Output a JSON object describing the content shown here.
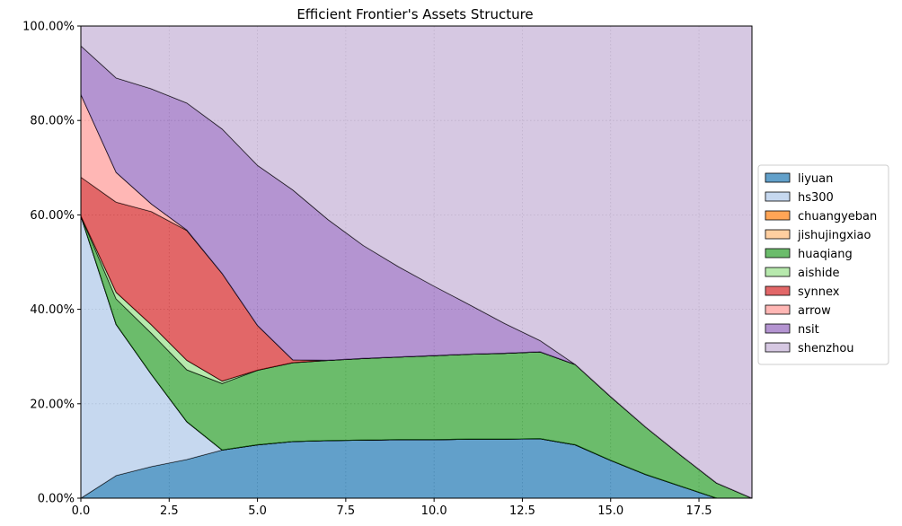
{
  "chart_data": {
    "type": "area",
    "stacked": true,
    "normalized": true,
    "title": "Efficient Frontier's Assets Structure",
    "xlabel": "",
    "ylabel": "",
    "xlim": [
      0,
      19
    ],
    "ylim": [
      0,
      1
    ],
    "xticks": [
      0.0,
      2.5,
      5.0,
      7.5,
      10.0,
      12.5,
      15.0,
      17.5
    ],
    "xtick_labels": [
      "0.0",
      "2.5",
      "5.0",
      "7.5",
      "10.0",
      "12.5",
      "15.0",
      "17.5"
    ],
    "yticks": [
      0,
      0.2,
      0.4,
      0.6,
      0.8,
      1.0
    ],
    "ytick_labels": [
      "0.00%",
      "20.00%",
      "40.00%",
      "60.00%",
      "80.00%",
      "100.00%"
    ],
    "grid": true,
    "legend_position": "right",
    "x": [
      0,
      1,
      2,
      3,
      4,
      5,
      6,
      7,
      8,
      9,
      10,
      11,
      12,
      13,
      14,
      15,
      16,
      17,
      18,
      19
    ],
    "series": [
      {
        "name": "liyuan",
        "color": "#1f77b4",
        "values": [
          0,
          0.048,
          0.067,
          0.082,
          0.102,
          0.113,
          0.12,
          0.122,
          0.123,
          0.124,
          0.124,
          0.125,
          0.125,
          0.126,
          0.113,
          0.08,
          0.05,
          0.025,
          0,
          0
        ]
      },
      {
        "name": "hs300",
        "color": "#aec7e8",
        "values": [
          0.598,
          0.32,
          0.195,
          0.08,
          0,
          0,
          0,
          0,
          0,
          0,
          0,
          0,
          0,
          0,
          0,
          0,
          0,
          0,
          0,
          0
        ]
      },
      {
        "name": "chuangyeban",
        "color": "#ff7f0e",
        "values": [
          0,
          0,
          0,
          0,
          0,
          0,
          0,
          0,
          0,
          0,
          0,
          0,
          0,
          0,
          0,
          0,
          0,
          0,
          0,
          0
        ]
      },
      {
        "name": "jishujingxiao",
        "color": "#ffbb78",
        "values": [
          0,
          0,
          0,
          0,
          0,
          0,
          0,
          0,
          0,
          0,
          0,
          0,
          0,
          0,
          0,
          0,
          0,
          0,
          0,
          0
        ]
      },
      {
        "name": "huaqiang",
        "color": "#2ca02c",
        "values": [
          0,
          0.054,
          0.087,
          0.11,
          0.141,
          0.158,
          0.167,
          0.17,
          0.173,
          0.175,
          0.178,
          0.18,
          0.182,
          0.184,
          0.17,
          0.135,
          0.1,
          0.065,
          0.032,
          0
        ]
      },
      {
        "name": "aishide",
        "color": "#98df8a",
        "values": [
          0,
          0.014,
          0.018,
          0.02,
          0.005,
          0,
          0,
          0,
          0,
          0,
          0,
          0,
          0,
          0,
          0,
          0,
          0,
          0,
          0,
          0
        ]
      },
      {
        "name": "synnex",
        "color": "#d62728",
        "values": [
          0.082,
          0.191,
          0.24,
          0.275,
          0.228,
          0.095,
          0.006,
          0,
          0,
          0,
          0,
          0,
          0,
          0,
          0,
          0,
          0,
          0,
          0,
          0
        ]
      },
      {
        "name": "arrow",
        "color": "#ff9896",
        "values": [
          0.175,
          0.063,
          0.016,
          0.001,
          0,
          0,
          0,
          0,
          0,
          0,
          0,
          0,
          0,
          0,
          0,
          0,
          0,
          0,
          0,
          0
        ]
      },
      {
        "name": "nsit",
        "color": "#9467bd",
        "values": [
          0.103,
          0.2,
          0.244,
          0.269,
          0.306,
          0.339,
          0.36,
          0.298,
          0.239,
          0.191,
          0.147,
          0.105,
          0.063,
          0.024,
          0,
          0,
          0,
          0,
          0,
          0
        ]
      },
      {
        "name": "shenzhou",
        "color": "#c5b0d5",
        "values": [
          0.042,
          0.11,
          0.133,
          0.163,
          0.218,
          0.295,
          0.347,
          0.41,
          0.465,
          0.51,
          0.551,
          0.59,
          0.63,
          0.666,
          0.717,
          0.785,
          0.85,
          0.91,
          0.968,
          1.0
        ]
      }
    ]
  }
}
